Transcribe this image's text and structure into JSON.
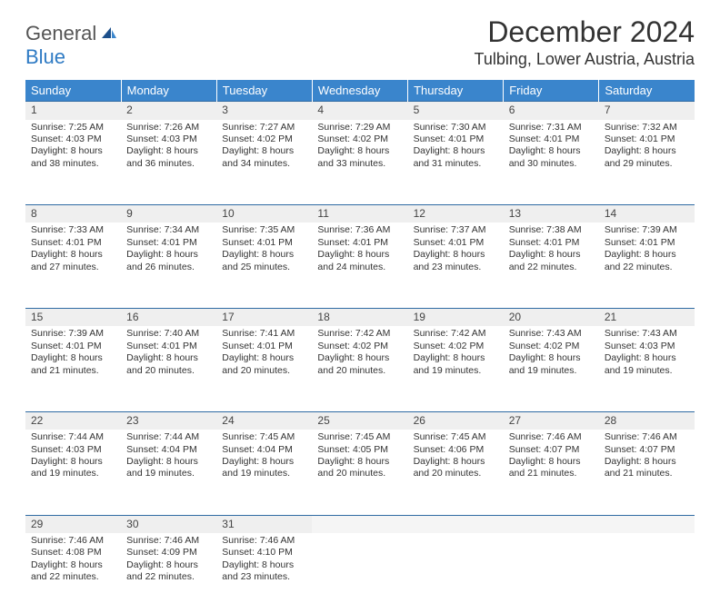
{
  "logo": {
    "word1": "General",
    "word2": "Blue"
  },
  "title": "December 2024",
  "location": "Tulbing, Lower Austria, Austria",
  "headers": [
    "Sunday",
    "Monday",
    "Tuesday",
    "Wednesday",
    "Thursday",
    "Friday",
    "Saturday"
  ],
  "colors": {
    "header_bg": "#3a85cc",
    "header_text": "#ffffff",
    "daynum_bg": "#efefef",
    "rule": "#2f6aa3",
    "logo_blue": "#2f7bc4",
    "text": "#333333"
  },
  "weeks": [
    [
      {
        "n": "1",
        "sr": "Sunrise: 7:25 AM",
        "ss": "Sunset: 4:03 PM",
        "d1": "Daylight: 8 hours",
        "d2": "and 38 minutes."
      },
      {
        "n": "2",
        "sr": "Sunrise: 7:26 AM",
        "ss": "Sunset: 4:03 PM",
        "d1": "Daylight: 8 hours",
        "d2": "and 36 minutes."
      },
      {
        "n": "3",
        "sr": "Sunrise: 7:27 AM",
        "ss": "Sunset: 4:02 PM",
        "d1": "Daylight: 8 hours",
        "d2": "and 34 minutes."
      },
      {
        "n": "4",
        "sr": "Sunrise: 7:29 AM",
        "ss": "Sunset: 4:02 PM",
        "d1": "Daylight: 8 hours",
        "d2": "and 33 minutes."
      },
      {
        "n": "5",
        "sr": "Sunrise: 7:30 AM",
        "ss": "Sunset: 4:01 PM",
        "d1": "Daylight: 8 hours",
        "d2": "and 31 minutes."
      },
      {
        "n": "6",
        "sr": "Sunrise: 7:31 AM",
        "ss": "Sunset: 4:01 PM",
        "d1": "Daylight: 8 hours",
        "d2": "and 30 minutes."
      },
      {
        "n": "7",
        "sr": "Sunrise: 7:32 AM",
        "ss": "Sunset: 4:01 PM",
        "d1": "Daylight: 8 hours",
        "d2": "and 29 minutes."
      }
    ],
    [
      {
        "n": "8",
        "sr": "Sunrise: 7:33 AM",
        "ss": "Sunset: 4:01 PM",
        "d1": "Daylight: 8 hours",
        "d2": "and 27 minutes."
      },
      {
        "n": "9",
        "sr": "Sunrise: 7:34 AM",
        "ss": "Sunset: 4:01 PM",
        "d1": "Daylight: 8 hours",
        "d2": "and 26 minutes."
      },
      {
        "n": "10",
        "sr": "Sunrise: 7:35 AM",
        "ss": "Sunset: 4:01 PM",
        "d1": "Daylight: 8 hours",
        "d2": "and 25 minutes."
      },
      {
        "n": "11",
        "sr": "Sunrise: 7:36 AM",
        "ss": "Sunset: 4:01 PM",
        "d1": "Daylight: 8 hours",
        "d2": "and 24 minutes."
      },
      {
        "n": "12",
        "sr": "Sunrise: 7:37 AM",
        "ss": "Sunset: 4:01 PM",
        "d1": "Daylight: 8 hours",
        "d2": "and 23 minutes."
      },
      {
        "n": "13",
        "sr": "Sunrise: 7:38 AM",
        "ss": "Sunset: 4:01 PM",
        "d1": "Daylight: 8 hours",
        "d2": "and 22 minutes."
      },
      {
        "n": "14",
        "sr": "Sunrise: 7:39 AM",
        "ss": "Sunset: 4:01 PM",
        "d1": "Daylight: 8 hours",
        "d2": "and 22 minutes."
      }
    ],
    [
      {
        "n": "15",
        "sr": "Sunrise: 7:39 AM",
        "ss": "Sunset: 4:01 PM",
        "d1": "Daylight: 8 hours",
        "d2": "and 21 minutes."
      },
      {
        "n": "16",
        "sr": "Sunrise: 7:40 AM",
        "ss": "Sunset: 4:01 PM",
        "d1": "Daylight: 8 hours",
        "d2": "and 20 minutes."
      },
      {
        "n": "17",
        "sr": "Sunrise: 7:41 AM",
        "ss": "Sunset: 4:01 PM",
        "d1": "Daylight: 8 hours",
        "d2": "and 20 minutes."
      },
      {
        "n": "18",
        "sr": "Sunrise: 7:42 AM",
        "ss": "Sunset: 4:02 PM",
        "d1": "Daylight: 8 hours",
        "d2": "and 20 minutes."
      },
      {
        "n": "19",
        "sr": "Sunrise: 7:42 AM",
        "ss": "Sunset: 4:02 PM",
        "d1": "Daylight: 8 hours",
        "d2": "and 19 minutes."
      },
      {
        "n": "20",
        "sr": "Sunrise: 7:43 AM",
        "ss": "Sunset: 4:02 PM",
        "d1": "Daylight: 8 hours",
        "d2": "and 19 minutes."
      },
      {
        "n": "21",
        "sr": "Sunrise: 7:43 AM",
        "ss": "Sunset: 4:03 PM",
        "d1": "Daylight: 8 hours",
        "d2": "and 19 minutes."
      }
    ],
    [
      {
        "n": "22",
        "sr": "Sunrise: 7:44 AM",
        "ss": "Sunset: 4:03 PM",
        "d1": "Daylight: 8 hours",
        "d2": "and 19 minutes."
      },
      {
        "n": "23",
        "sr": "Sunrise: 7:44 AM",
        "ss": "Sunset: 4:04 PM",
        "d1": "Daylight: 8 hours",
        "d2": "and 19 minutes."
      },
      {
        "n": "24",
        "sr": "Sunrise: 7:45 AM",
        "ss": "Sunset: 4:04 PM",
        "d1": "Daylight: 8 hours",
        "d2": "and 19 minutes."
      },
      {
        "n": "25",
        "sr": "Sunrise: 7:45 AM",
        "ss": "Sunset: 4:05 PM",
        "d1": "Daylight: 8 hours",
        "d2": "and 20 minutes."
      },
      {
        "n": "26",
        "sr": "Sunrise: 7:45 AM",
        "ss": "Sunset: 4:06 PM",
        "d1": "Daylight: 8 hours",
        "d2": "and 20 minutes."
      },
      {
        "n": "27",
        "sr": "Sunrise: 7:46 AM",
        "ss": "Sunset: 4:07 PM",
        "d1": "Daylight: 8 hours",
        "d2": "and 21 minutes."
      },
      {
        "n": "28",
        "sr": "Sunrise: 7:46 AM",
        "ss": "Sunset: 4:07 PM",
        "d1": "Daylight: 8 hours",
        "d2": "and 21 minutes."
      }
    ],
    [
      {
        "n": "29",
        "sr": "Sunrise: 7:46 AM",
        "ss": "Sunset: 4:08 PM",
        "d1": "Daylight: 8 hours",
        "d2": "and 22 minutes."
      },
      {
        "n": "30",
        "sr": "Sunrise: 7:46 AM",
        "ss": "Sunset: 4:09 PM",
        "d1": "Daylight: 8 hours",
        "d2": "and 22 minutes."
      },
      {
        "n": "31",
        "sr": "Sunrise: 7:46 AM",
        "ss": "Sunset: 4:10 PM",
        "d1": "Daylight: 8 hours",
        "d2": "and 23 minutes."
      },
      null,
      null,
      null,
      null
    ]
  ]
}
